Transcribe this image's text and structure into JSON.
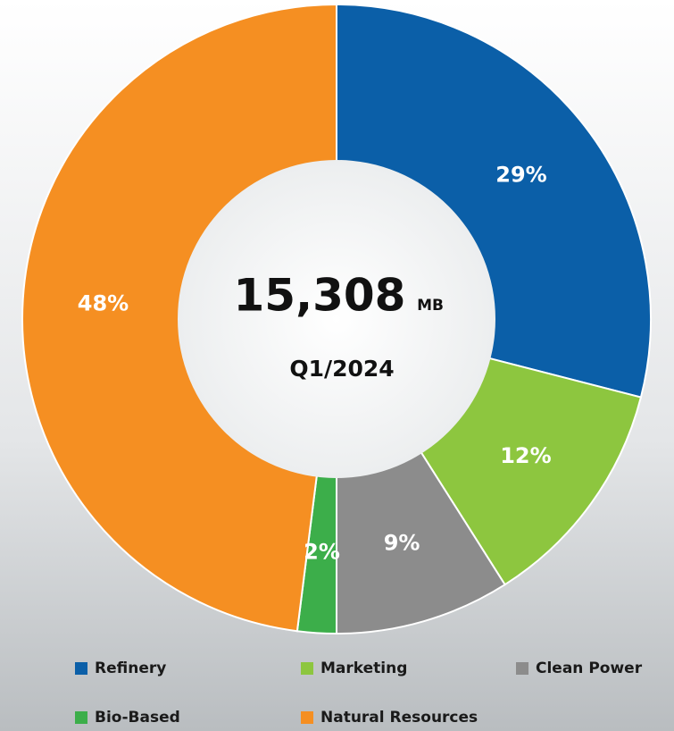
{
  "chart_data": {
    "type": "donut",
    "center_value": "15,308",
    "center_unit": "MB",
    "period": "Q1/2024",
    "categories": [
      "Refinery",
      "Marketing",
      "Clean Power",
      "Bio-Based",
      "Natural Resources"
    ],
    "values": [
      29,
      12,
      9,
      2,
      48
    ],
    "value_labels": [
      "29%",
      "12%",
      "9%",
      "2%",
      "48%"
    ],
    "colors": [
      "#0b5fa8",
      "#8dc63f",
      "#8c8c8c",
      "#3cae4a",
      "#f58f22"
    ]
  }
}
